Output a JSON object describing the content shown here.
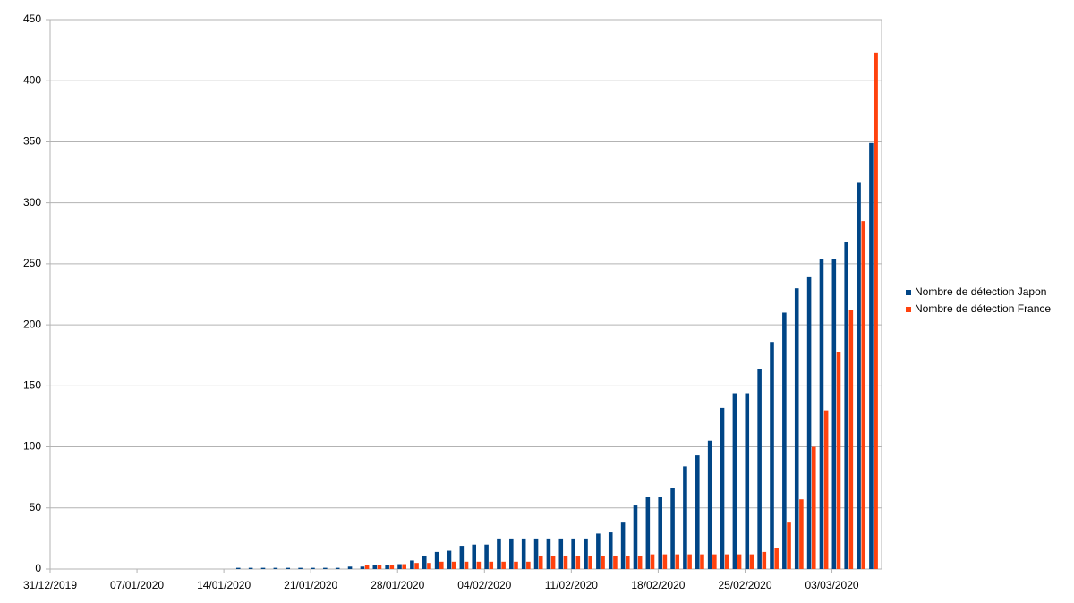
{
  "chart_data": {
    "type": "bar",
    "categories": [
      "31/12/2019",
      null,
      null,
      null,
      null,
      null,
      null,
      "07/01/2020",
      null,
      null,
      null,
      null,
      null,
      null,
      "14/01/2020",
      null,
      null,
      null,
      null,
      null,
      null,
      "21/01/2020",
      null,
      null,
      null,
      null,
      null,
      null,
      "28/01/2020",
      null,
      null,
      null,
      null,
      null,
      null,
      "04/02/2020",
      null,
      null,
      null,
      null,
      null,
      null,
      "11/02/2020",
      null,
      null,
      null,
      null,
      null,
      null,
      "18/02/2020",
      null,
      null,
      null,
      null,
      null,
      null,
      "25/02/2020",
      null,
      null,
      null,
      null,
      null,
      null,
      "03/03/2020",
      null,
      null,
      null
    ],
    "series": [
      {
        "name": "Nombre de détection Japon",
        "color": "#004586",
        "values": [
          0,
          0,
          0,
          0,
          0,
          0,
          0,
          0,
          0,
          0,
          0,
          0,
          0,
          0,
          0,
          1,
          1,
          1,
          1,
          1,
          1,
          1,
          1,
          1,
          2,
          2,
          3,
          3,
          4,
          7,
          11,
          14,
          15,
          19,
          20,
          20,
          25,
          25,
          25,
          25,
          25,
          25,
          25,
          25,
          29,
          30,
          38,
          52,
          59,
          59,
          66,
          84,
          93,
          105,
          132,
          144,
          144,
          164,
          186,
          210,
          230,
          239,
          254,
          254,
          268,
          317,
          349
        ]
      },
      {
        "name": "Nombre de détection France",
        "color": "#ff420e",
        "values": [
          0,
          0,
          0,
          0,
          0,
          0,
          0,
          0,
          0,
          0,
          0,
          0,
          0,
          0,
          0,
          0,
          0,
          0,
          0,
          0,
          0,
          0,
          0,
          0,
          0,
          3,
          3,
          3,
          4,
          5,
          5,
          6,
          6,
          6,
          6,
          6,
          6,
          6,
          6,
          11,
          11,
          11,
          11,
          11,
          11,
          11,
          11,
          11,
          12,
          12,
          12,
          12,
          12,
          12,
          12,
          12,
          12,
          14,
          17,
          38,
          57,
          100,
          130,
          178,
          212,
          285,
          423
        ]
      }
    ],
    "ylim": [
      0,
      450
    ],
    "yticks": [
      0,
      50,
      100,
      150,
      200,
      250,
      300,
      350,
      400,
      450
    ],
    "grid": true,
    "legend": "right"
  }
}
